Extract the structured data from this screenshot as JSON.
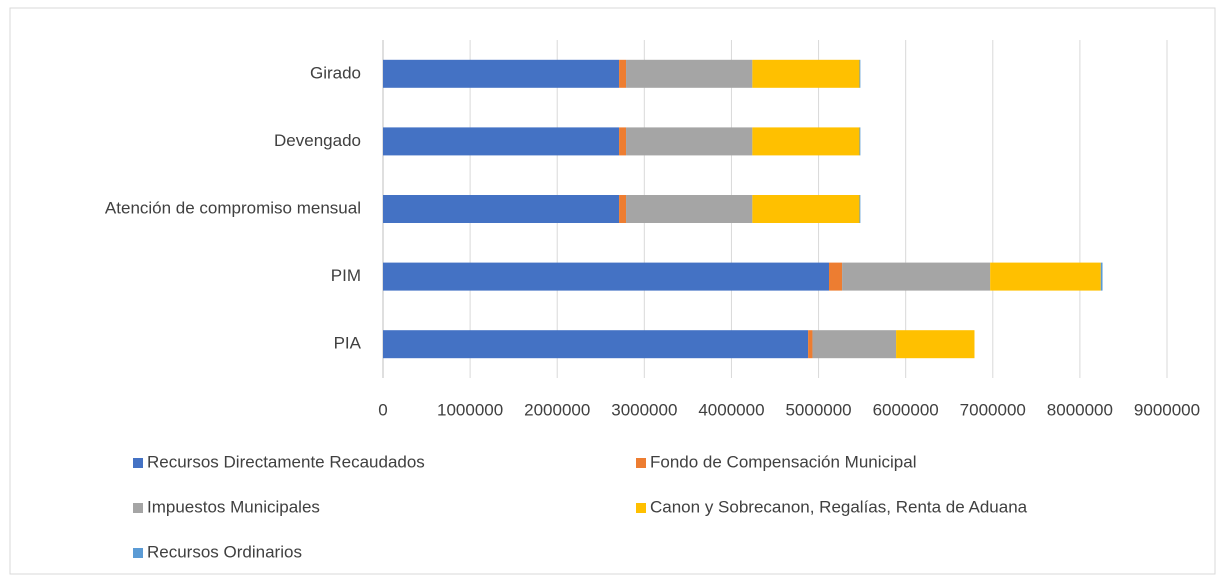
{
  "chart_data": {
    "type": "bar",
    "orientation": "horizontal",
    "stacked": true,
    "categories": [
      "PIA",
      "PIM",
      "Atención de compromiso mensual",
      "Devengado",
      "Girado"
    ],
    "series": [
      {
        "name": "Recursos Directamente Recaudados",
        "color": "#4472c4",
        "values": [
          4880000,
          5120000,
          2710000,
          2710000,
          2710000
        ]
      },
      {
        "name": "Fondo de Compensación Municipal",
        "color": "#ed7d31",
        "values": [
          50000,
          150000,
          80000,
          80000,
          80000
        ]
      },
      {
        "name": "Impuestos Municipales",
        "color": "#a5a5a5",
        "values": [
          960000,
          1700000,
          1450000,
          1450000,
          1450000
        ]
      },
      {
        "name": "Canon y Sobrecanon, Regalías, Renta de Aduana",
        "color": "#ffc000",
        "values": [
          900000,
          1270000,
          1230000,
          1230000,
          1230000
        ]
      },
      {
        "name": "Recursos Ordinarios",
        "color": "#5b9bd5",
        "values": [
          0,
          20000,
          10000,
          10000,
          10000
        ]
      }
    ],
    "xlim": [
      0,
      9000000
    ],
    "xticks": [
      0,
      1000000,
      2000000,
      3000000,
      4000000,
      5000000,
      6000000,
      7000000,
      8000000,
      9000000
    ],
    "grid": true
  }
}
